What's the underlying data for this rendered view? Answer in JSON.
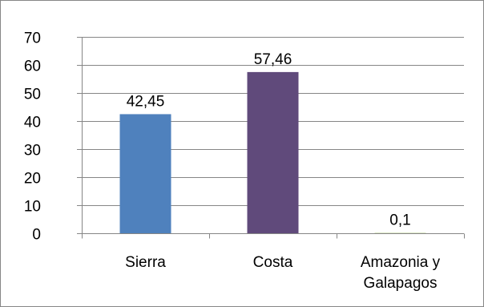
{
  "chart_data": {
    "type": "bar",
    "categories": [
      [
        "Sierra"
      ],
      [
        "Costa"
      ],
      [
        "Amazonia y",
        "Galapagos"
      ]
    ],
    "values": [
      42.45,
      57.46,
      0.1
    ],
    "data_labels": [
      "42,45",
      "57,46",
      "0,1"
    ],
    "bar_colors": [
      "#4F81BD",
      "#604A7B",
      "#9BBB59"
    ],
    "ylim": [
      0,
      70
    ],
    "yticks": [
      0,
      10,
      20,
      30,
      40,
      50,
      60,
      70
    ],
    "grid": true,
    "legend": "none",
    "title": "",
    "xlabel": "",
    "ylabel": ""
  }
}
